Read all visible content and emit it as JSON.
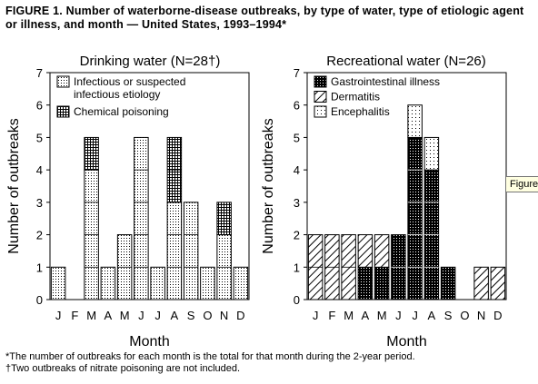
{
  "figure": {
    "title": "FIGURE 1. Number of waterborne-disease outbreaks, by type of water, type of etiologic agent or illness, and month — United States, 1993–1994*",
    "footnotes": [
      "*The number of outbreaks for each month is the total for that month during the 2-year period.",
      "†Two outbreaks of nitrate poisoning are not included."
    ],
    "tooltip": "Figure"
  },
  "chart_data": [
    {
      "type": "bar",
      "stacked": true,
      "title": "Drinking water (N=28†)",
      "xlabel": "Month",
      "ylabel": "Number of outbreaks",
      "ylim": [
        0,
        7
      ],
      "yticks": [
        "0",
        "1",
        "2",
        "3",
        "4",
        "5",
        "6",
        "7"
      ],
      "grid": false,
      "legend_position": "top-left",
      "categories": [
        "J",
        "F",
        "M",
        "A",
        "M",
        "J",
        "J",
        "A",
        "S",
        "O",
        "N",
        "D"
      ],
      "series": [
        {
          "name": "Infectious or suspected infectious etiology",
          "pattern": "dots",
          "values": [
            1,
            0,
            4,
            1,
            2,
            5,
            1,
            3,
            3,
            1,
            2,
            1
          ]
        },
        {
          "name": "Chemical poisoning",
          "pattern": "grid",
          "values": [
            0,
            0,
            1,
            0,
            0,
            0,
            0,
            2,
            0,
            0,
            1,
            0
          ]
        }
      ]
    },
    {
      "type": "bar",
      "stacked": true,
      "title": "Recreational water (N=26)",
      "xlabel": "Month",
      "ylabel": "Number of outbreaks",
      "ylim": [
        0,
        7
      ],
      "yticks": [
        "0",
        "1",
        "2",
        "3",
        "4",
        "5",
        "6",
        "7"
      ],
      "grid": false,
      "legend_position": "top-right",
      "categories": [
        "J",
        "F",
        "M",
        "A",
        "M",
        "J",
        "J",
        "A",
        "S",
        "O",
        "N",
        "D"
      ],
      "series": [
        {
          "name": "Gastrointestinal illness",
          "pattern": "dark",
          "values": [
            0,
            0,
            0,
            1,
            1,
            2,
            5,
            4,
            1,
            0,
            0,
            0
          ]
        },
        {
          "name": "Dermatitis",
          "pattern": "hatch",
          "values": [
            2,
            2,
            2,
            1,
            1,
            0,
            0,
            0,
            0,
            0,
            1,
            1
          ]
        },
        {
          "name": "Encephalitis",
          "pattern": "light",
          "values": [
            0,
            0,
            0,
            0,
            0,
            0,
            1,
            1,
            0,
            0,
            0,
            0
          ]
        }
      ]
    }
  ]
}
